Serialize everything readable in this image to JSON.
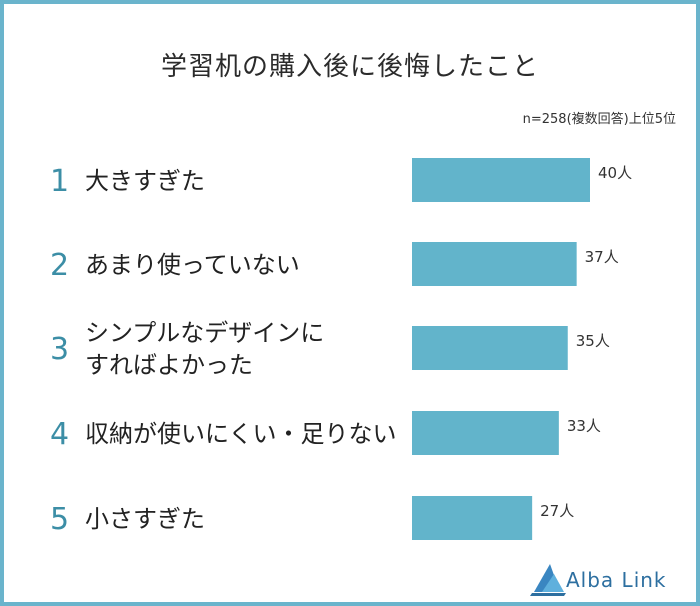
{
  "title": "学習机の購入後に後悔したこと",
  "note": "n=258(複数回答)上位5位",
  "brand": "Alba Link",
  "colors": {
    "bar": "#62b4cb",
    "rank": "#3c8ea6",
    "border": "#6ab4cc"
  },
  "chart_data": {
    "type": "bar",
    "orientation": "horizontal",
    "title": "学習机の購入後に後悔したこと",
    "ranks": [
      "1",
      "2",
      "3",
      "4",
      "5"
    ],
    "categories": [
      [
        "大きすぎた"
      ],
      [
        "あまり使っていない"
      ],
      [
        "シンプルなデザインに",
        "すればよかった"
      ],
      [
        "収納が使いにくい・足りない"
      ],
      [
        "小さすぎた"
      ]
    ],
    "values": [
      40,
      37,
      35,
      33,
      27
    ],
    "value_labels": [
      "40人",
      "37人",
      "35人",
      "33人",
      "27人"
    ],
    "xlim": [
      0,
      40
    ],
    "grid": false,
    "legend": "none"
  }
}
